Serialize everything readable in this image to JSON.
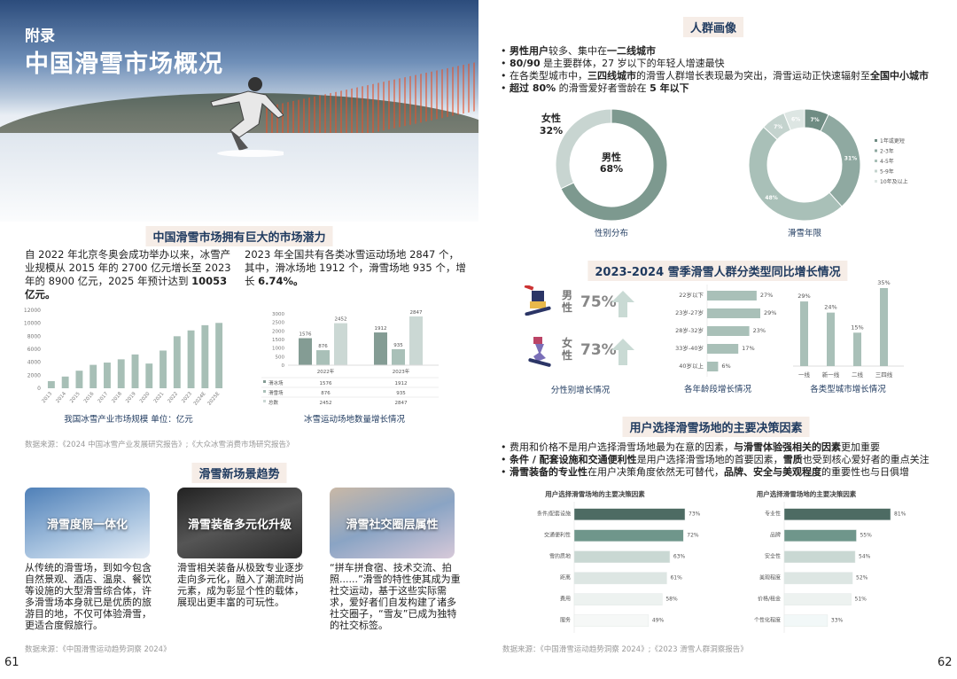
{
  "left_page": {
    "appendix_label": "附录",
    "title": "中国滑雪市场概况",
    "section1_heading": "中国滑雪市场拥有巨大的市场潜力",
    "para1": [
      {
        "t": "自 2022 年北京冬奥会成功举办以来，冰雪产业规模从 2015 年的 2700 亿元增长至 2023 年的 8900 亿元，2025 年预计达到 "
      },
      {
        "t": "10053 亿元。",
        "b": true
      }
    ],
    "para2": [
      {
        "t": "2023 年全国共有各类冰雪运动场地 2847 个，其中，滑冰场地 1912 个，滑雪场地 935 个，增长 "
      },
      {
        "t": "6.74%。",
        "b": true
      }
    ],
    "source1": "数据来源：《2024 中国冰雪产业发展研究报告》;《大众冰雪消费市场研究报告》",
    "section2_heading": "滑雪新场景趋势",
    "cards": [
      {
        "title": "滑雪度假一体化",
        "text": "从传统的滑雪场，到如今包含自然景观、酒店、温泉、餐饮等设施的大型滑雪综合体，许多滑雪场本身就已是优质的旅游目的地，不仅可体验滑雪，更适合度假旅行。"
      },
      {
        "title": "滑雪装备多元化升级",
        "text": "滑雪相关装备从极致专业逐步走向多元化，融入了潮流时尚元素，成为彰显个性的载体，展现出更丰富的可玩性。"
      },
      {
        "title": "滑雪社交圈层属性",
        "text": "“拼车拼食宿、技术交流、拍照......”滑雪的特性使其成为重社交运动，基于这些实际需求，爱好者们自发构建了诸多社交圈子，“雪友”已成为独特的社交标签。"
      }
    ],
    "source2": "数据来源：《中国滑雪运动趋势洞察 2024》",
    "page_number": "61"
  },
  "right_page": {
    "section1_heading": "人群画像",
    "bullets1": [
      [
        {
          "t": "男性用户",
          "b": true
        },
        {
          "t": "较多、集中在"
        },
        {
          "t": "一二线城市",
          "b": true
        }
      ],
      [
        {
          "t": "80/90",
          "b": true
        },
        {
          "t": " 是主要群体，27 岁以下的年轻人增速最快"
        }
      ],
      [
        {
          "t": "在各类型城市中，"
        },
        {
          "t": "三四线城市",
          "b": true
        },
        {
          "t": "的滑雪人群增长表现最为突出，滑雪运动正快速辐射至"
        },
        {
          "t": "全国中小城市",
          "b": true
        }
      ],
      [
        {
          "t": "超过 80%",
          "b": true
        },
        {
          "t": " 的滑雪爱好者雪龄在 "
        },
        {
          "t": "5 年以下",
          "b": true
        }
      ]
    ],
    "section2_heading": "2023-2024 雪季滑雪人群分类型同比增长情况",
    "gender_growth": [
      {
        "label": "男性",
        "value": "75%",
        "icon": "male-snowboarder-icon"
      },
      {
        "label": "女性",
        "value": "73%",
        "icon": "female-snowboarder-icon"
      }
    ],
    "gender_growth_caption": "分性别增长情况",
    "section3_heading": "用户选择滑雪场地的主要决策因素",
    "bullets2": [
      [
        {
          "t": "费用和价格不是用户选择滑雪场地最为在意的因素，"
        },
        {
          "t": "与滑雪体验强相关的因素",
          "b": true
        },
        {
          "t": "更加重要"
        }
      ],
      [
        {
          "t": "条件 / 配套设施和交通便利性",
          "b": true
        },
        {
          "t": "是用户选择滑雪场地的首要因素，"
        },
        {
          "t": "雪质",
          "b": true
        },
        {
          "t": "也受到核心爱好者的重点关注"
        }
      ],
      [
        {
          "t": "滑雪装备的专业性",
          "b": true
        },
        {
          "t": "在用户决策角度依然无可替代，"
        },
        {
          "t": "品牌、安全与美观程度",
          "b": true
        },
        {
          "t": "的重要性也与日俱增"
        }
      ]
    ],
    "source": "数据来源：《中国滑雪运动趋势洞察 2024》;《2023 滑雪人群洞察报告》",
    "page_number": "62"
  },
  "chart_data": [
    {
      "id": "market",
      "type": "bar",
      "title": "我国冰雪产业市场规模  单位：亿元",
      "categories": [
        "2013",
        "2014",
        "2015",
        "2016",
        "2017",
        "2018",
        "2019",
        "2020",
        "2021",
        "2022",
        "2023",
        "2024E",
        "2025E"
      ],
      "values": [
        1100,
        1800,
        2700,
        3600,
        3950,
        4450,
        5200,
        3800,
        5800,
        8000,
        8900,
        9700,
        10053
      ],
      "ylim": [
        0,
        12000
      ],
      "yticks": [
        0,
        2000,
        4000,
        6000,
        8000,
        10000,
        12000
      ],
      "color": "#a7bfb6"
    },
    {
      "id": "venues",
      "type": "bar",
      "title": "冰雪运动场地数量增长情况",
      "categories": [
        "2022年",
        "2023年"
      ],
      "series": [
        {
          "name": "滑冰场",
          "values": [
            1576,
            1912
          ],
          "color": "#849c94"
        },
        {
          "name": "滑雪场",
          "values": [
            876,
            935
          ],
          "color": "#a9c0b8"
        },
        {
          "name": "总数",
          "values": [
            2452,
            2847
          ],
          "color": "#cbd8d4"
        }
      ],
      "ylim": [
        0,
        3000
      ],
      "yticks": [
        0,
        500,
        1000,
        1500,
        2000,
        2500,
        3000
      ],
      "table": true
    },
    {
      "id": "gender",
      "type": "pie",
      "title": "性别分布",
      "slices": [
        {
          "name": "男性",
          "value": 68,
          "color": "#7d998f"
        },
        {
          "name": "女性",
          "value": 32,
          "color": "#c8d5d1"
        }
      ]
    },
    {
      "id": "years",
      "type": "pie",
      "title": "滑雪年限",
      "legend": "right",
      "slices": [
        {
          "name": "1年或更短",
          "value": 7,
          "color": "#6f8c83"
        },
        {
          "name": "2-3年",
          "value": 31,
          "color": "#8fa9a1"
        },
        {
          "name": "4-5年",
          "value": 48,
          "color": "#a9c0b8"
        },
        {
          "name": "5-9年",
          "value": 7,
          "color": "#c4d3ce"
        },
        {
          "name": "10年及以上",
          "value": 6,
          "color": "#dde6e3"
        }
      ]
    },
    {
      "id": "age",
      "type": "bar",
      "orientation": "horizontal",
      "title": "各年龄段增长情况",
      "categories": [
        "22岁以下",
        "23岁-27岁",
        "28岁-32岁",
        "33岁-40岁",
        "40岁以上"
      ],
      "values": [
        27,
        29,
        23,
        17,
        6
      ],
      "unit": "%",
      "color": "#a9c0b8"
    },
    {
      "id": "city",
      "type": "bar",
      "title": "各类型城市增长情况",
      "categories": [
        "一线",
        "新一线",
        "二线",
        "三四线"
      ],
      "values": [
        29,
        24,
        15,
        35
      ],
      "unit": "%",
      "color": "#a9c0b8"
    },
    {
      "id": "factors1",
      "type": "bar",
      "orientation": "horizontal",
      "title": "用户选择滑雪场地的主要决策因素",
      "categories": [
        "条件/配套设施",
        "交通便利性",
        "雪的质地",
        "距离",
        "费用",
        "服务"
      ],
      "values": [
        73,
        72,
        63,
        61,
        58,
        49
      ],
      "unit": "%",
      "colors": [
        "#4d6b63",
        "#6f968b",
        "#c9d8d3",
        "#dde6e3",
        "#edf2f0",
        "#f6f8f7"
      ]
    },
    {
      "id": "factors2",
      "type": "bar",
      "orientation": "horizontal",
      "title": "用户选择滑雪场地的主要决策因素",
      "categories": [
        "专业性",
        "品牌",
        "安全性",
        "美观程度",
        "价格/租金",
        "个性化程度"
      ],
      "values": [
        81,
        55,
        54,
        52,
        51,
        33
      ],
      "unit": "%",
      "colors": [
        "#4d6b63",
        "#6f968b",
        "#c9d8d3",
        "#dde6e3",
        "#edf2f0",
        "#f2f8f8"
      ]
    }
  ]
}
